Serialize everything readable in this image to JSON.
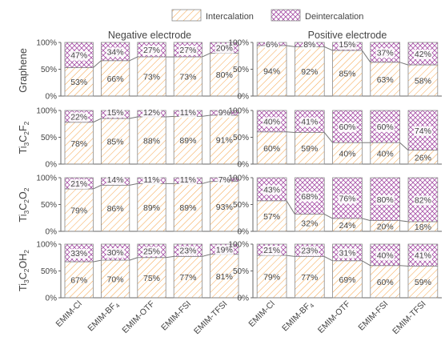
{
  "legend": {
    "intercalation": "Intercalation",
    "deintercalation": "Deintercalation"
  },
  "colors": {
    "intercalation": "#f5a44a",
    "deintercalation": "#a64fa6",
    "axis": "#666666",
    "text": "#444444"
  },
  "columns": [
    {
      "title": "Negative electrode"
    },
    {
      "title": "Positive electrode"
    }
  ],
  "rows": [
    {
      "label_base": "Graphene",
      "label_parts": []
    },
    {
      "label_base": "",
      "label_parts": [
        [
          "Ti",
          "3"
        ],
        [
          "C",
          "2"
        ],
        [
          "F",
          "2"
        ]
      ]
    },
    {
      "label_base": "",
      "label_parts": [
        [
          "Ti",
          "3"
        ],
        [
          "C",
          "2"
        ],
        [
          "O",
          "2"
        ]
      ]
    },
    {
      "label_base": "",
      "label_parts": [
        [
          "Ti",
          "3"
        ],
        [
          "C",
          "2"
        ],
        [
          "OH",
          "2"
        ]
      ]
    }
  ],
  "categories": [
    {
      "base": "EMIM-Cl",
      "sub": ""
    },
    {
      "base": "EMIM-BF",
      "sub": "4"
    },
    {
      "base": "EMIM-OTF",
      "sub": ""
    },
    {
      "base": "EMIM-FSI",
      "sub": ""
    },
    {
      "base": "EMIM-TFSI",
      "sub": ""
    }
  ],
  "chart_data": {
    "type": "bar",
    "stacked": true,
    "yticks": [
      "0%",
      "50%",
      "100%"
    ],
    "ylim": [
      0,
      100
    ],
    "series_names": [
      "Intercalation",
      "Deintercalation"
    ],
    "panels": [
      {
        "row": 0,
        "col": 0,
        "intercalation": [
          53,
          66,
          73,
          73,
          80
        ],
        "deintercalation": [
          47,
          34,
          27,
          27,
          20
        ]
      },
      {
        "row": 0,
        "col": 1,
        "intercalation": [
          94,
          92,
          85,
          63,
          58
        ],
        "deintercalation": [
          6,
          8,
          15,
          37,
          42
        ]
      },
      {
        "row": 1,
        "col": 0,
        "intercalation": [
          78,
          85,
          88,
          89,
          91
        ],
        "deintercalation": [
          22,
          15,
          12,
          11,
          9
        ]
      },
      {
        "row": 1,
        "col": 1,
        "intercalation": [
          60,
          59,
          40,
          40,
          26
        ],
        "deintercalation": [
          40,
          41,
          60,
          60,
          74
        ]
      },
      {
        "row": 2,
        "col": 0,
        "intercalation": [
          79,
          86,
          89,
          89,
          93
        ],
        "deintercalation": [
          21,
          14,
          11,
          11,
          7
        ]
      },
      {
        "row": 2,
        "col": 1,
        "intercalation": [
          57,
          32,
          24,
          20,
          18
        ],
        "deintercalation": [
          43,
          68,
          76,
          80,
          82
        ]
      },
      {
        "row": 3,
        "col": 0,
        "intercalation": [
          67,
          70,
          75,
          77,
          81
        ],
        "deintercalation": [
          33,
          30,
          25,
          23,
          19
        ]
      },
      {
        "row": 3,
        "col": 1,
        "intercalation": [
          79,
          77,
          69,
          60,
          59
        ],
        "deintercalation": [
          21,
          23,
          31,
          40,
          41
        ]
      }
    ]
  }
}
